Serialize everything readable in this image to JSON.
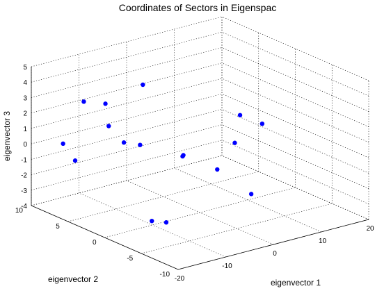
{
  "chart_data": {
    "type": "scatter",
    "title": "Coordinates of Sectors in Eigenspac",
    "xlabel": "eigenvector 1",
    "ylabel": "eigenvector 2",
    "zlabel": "eigenvector 3",
    "xlim": [
      -20,
      20
    ],
    "ylim": [
      -10,
      10
    ],
    "zlim": [
      -4,
      5
    ],
    "x_ticks": [
      "-20",
      "-10",
      "0",
      "10",
      "20"
    ],
    "y_ticks": [
      "10",
      "5",
      "0",
      "-5",
      "-10"
    ],
    "z_ticks": [
      "5",
      "4",
      "3",
      "2",
      "1",
      "0",
      "-1",
      "-2",
      "-3",
      "-4"
    ],
    "grid": true,
    "marker_color": "#0000ff",
    "points": [
      {
        "x": -19.0,
        "y": 3.5,
        "z": 4.0
      },
      {
        "x": -19.5,
        "y": 6.0,
        "z": 0.8
      },
      {
        "x": -10.3,
        "y": 6.2,
        "z": 2.6
      },
      {
        "x": -11.2,
        "y": 3.1,
        "z": 0.8
      },
      {
        "x": -9.8,
        "y": 1.8,
        "z": 0.8
      },
      {
        "x": -12.8,
        "y": 8.7,
        "z": -1.4
      },
      {
        "x": -7.3,
        "y": 7.7,
        "z": 0.6
      },
      {
        "x": 3.1,
        "y": 9.8,
        "z": 2.0
      },
      {
        "x": -7.2,
        "y": -2.3,
        "z": 0.7
      },
      {
        "x": 0.2,
        "y": 2.4,
        "z": -0.8
      },
      {
        "x": 8.7,
        "y": 3.3,
        "z": -2.6
      },
      {
        "x": -13.5,
        "y": -2.2,
        "z": -3.0
      },
      {
        "x": -7.4,
        "y": -0.2,
        "z": -4.0
      },
      {
        "x": 17.2,
        "y": 2.7,
        "z": -0.2
      },
      {
        "x": 19.0,
        "y": 7.6,
        "z": -2.6
      },
      {
        "x": 14.1,
        "y": 3.7,
        "z": 0.4
      },
      {
        "x": 14.6,
        "y": 2.5,
        "z": -4.5
      }
    ]
  }
}
